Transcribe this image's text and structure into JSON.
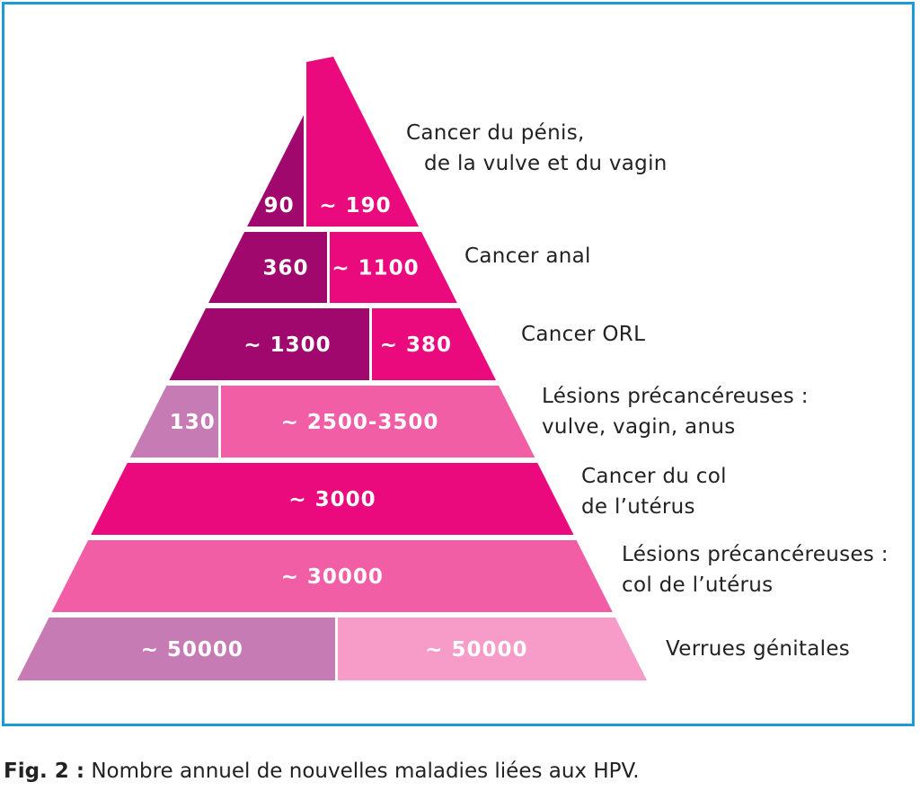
{
  "colors": {
    "frame": "#1e9ad6",
    "dark_purple": "#a0086e",
    "hot_pink": "#ea0a7e",
    "mauve": "#c77bb5",
    "medium_pink": "#f25ea6",
    "light_pink": "#f79bc8",
    "text": "#222222",
    "segment_text": "#ffffff"
  },
  "tiers": [
    {
      "id": "tier-1",
      "segments": [
        {
          "value": "90",
          "color": "#a0086e"
        },
        {
          "value": "~ 190",
          "color": "#ea0a7e"
        }
      ],
      "label_lines": [
        "Cancer du pénis,",
        "de la vulve et du vagin"
      ]
    },
    {
      "id": "tier-2",
      "segments": [
        {
          "value": "360",
          "color": "#a0086e"
        },
        {
          "value": "~ 1100",
          "color": "#ea0a7e"
        }
      ],
      "label_lines": [
        "Cancer anal"
      ]
    },
    {
      "id": "tier-3",
      "segments": [
        {
          "value": "~ 1300",
          "color": "#a0086e"
        },
        {
          "value": "~ 380",
          "color": "#ea0a7e"
        }
      ],
      "label_lines": [
        "Cancer ORL"
      ]
    },
    {
      "id": "tier-4",
      "segments": [
        {
          "value": "130",
          "color": "#c77bb5"
        },
        {
          "value": "~ 2500-3500",
          "color": "#f25ea6"
        }
      ],
      "label_lines": [
        "Lésions précancéreuses :",
        "vulve, vagin, anus"
      ]
    },
    {
      "id": "tier-5",
      "segments": [
        {
          "value": "~ 3000",
          "color": "#ea0a7e"
        }
      ],
      "label_lines": [
        "Cancer du col",
        "de l’utérus"
      ]
    },
    {
      "id": "tier-6",
      "segments": [
        {
          "value": "~ 30000",
          "color": "#f25ea6"
        }
      ],
      "label_lines": [
        "Lésions précancéreuses :",
        "col de l’utérus"
      ]
    },
    {
      "id": "tier-7",
      "segments": [
        {
          "value": "~ 50000",
          "color": "#c77bb5"
        },
        {
          "value": "~ 50000",
          "color": "#f79bc8"
        }
      ],
      "label_lines": [
        "Verrues génitales"
      ]
    }
  ],
  "caption": {
    "prefix": "Fig. 2 :",
    "text": " Nombre annuel de nouvelles maladies liées aux HPV."
  }
}
